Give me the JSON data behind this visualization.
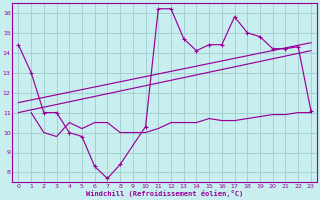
{
  "bg_color": "#c8eef0",
  "line_color": "#990099",
  "grid_color": "#a0cccc",
  "xlabel": "Windchill (Refroidissement éolien,°C)",
  "xlim": [
    -0.5,
    23.5
  ],
  "ylim": [
    7.5,
    16.5
  ],
  "yticks": [
    8,
    9,
    10,
    11,
    12,
    13,
    14,
    15,
    16
  ],
  "xticks": [
    0,
    1,
    2,
    3,
    4,
    5,
    6,
    7,
    8,
    9,
    10,
    11,
    12,
    13,
    14,
    15,
    16,
    17,
    18,
    19,
    20,
    21,
    22,
    23
  ],
  "series_main": {
    "x": [
      0,
      1,
      2,
      3,
      4,
      5,
      6,
      7,
      8,
      10,
      11,
      12,
      13,
      14,
      15,
      16,
      17,
      18,
      19,
      20,
      21,
      22,
      23
    ],
    "y": [
      14.4,
      13.0,
      11.0,
      11.0,
      10.0,
      9.8,
      8.3,
      7.7,
      8.4,
      10.3,
      16.2,
      16.2,
      14.7,
      14.1,
      14.4,
      14.4,
      15.8,
      15.0,
      14.8,
      14.2,
      14.2,
      14.3,
      11.1
    ]
  },
  "series_linear1": {
    "x": [
      0,
      23
    ],
    "y": [
      11.0,
      14.1
    ]
  },
  "series_linear2": {
    "x": [
      0,
      23
    ],
    "y": [
      11.5,
      14.5
    ]
  },
  "series_bottom": {
    "x": [
      1,
      2,
      3,
      4,
      5,
      6,
      7,
      8,
      9,
      10,
      11,
      12,
      13,
      14,
      15,
      16,
      17,
      18,
      19,
      20,
      21,
      22,
      23
    ],
    "y": [
      11.0,
      10.0,
      9.8,
      10.5,
      10.2,
      10.5,
      10.5,
      10.0,
      10.0,
      10.0,
      10.2,
      10.5,
      10.5,
      10.5,
      10.7,
      10.6,
      10.6,
      10.7,
      10.8,
      10.9,
      10.9,
      11.0,
      11.0
    ]
  }
}
